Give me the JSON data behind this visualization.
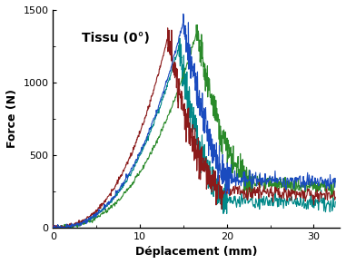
{
  "title": "Tissu (0°)",
  "xlabel": "Déplacement (mm)",
  "ylabel": "Force (N)",
  "xlim": [
    0,
    33
  ],
  "ylim": [
    0,
    1500
  ],
  "xticks": [
    0,
    10,
    20,
    30
  ],
  "yticks": [
    0,
    500,
    1000,
    1500
  ],
  "background_color": "#ffffff",
  "colors": {
    "blue": "#1a4bbf",
    "green": "#2a8a2a",
    "red": "#8b1a1a",
    "cyan": "#008888"
  },
  "curve_params": {
    "red": {
      "x_peak": 13.2,
      "y_peak": 1310,
      "x_drop_end": 19.5,
      "y_plateau": 250,
      "noise_seed": 1
    },
    "blue": {
      "x_peak": 15.0,
      "y_peak": 1420,
      "x_drop_end": 20.5,
      "y_plateau": 340,
      "noise_seed": 2
    },
    "cyan": {
      "x_peak": 14.5,
      "y_peak": 1250,
      "x_drop_end": 20.0,
      "y_plateau": 190,
      "noise_seed": 3
    },
    "green": {
      "x_peak": 16.5,
      "y_peak": 1330,
      "x_drop_end": 23.0,
      "y_plateau": 305,
      "noise_seed": 4
    }
  }
}
